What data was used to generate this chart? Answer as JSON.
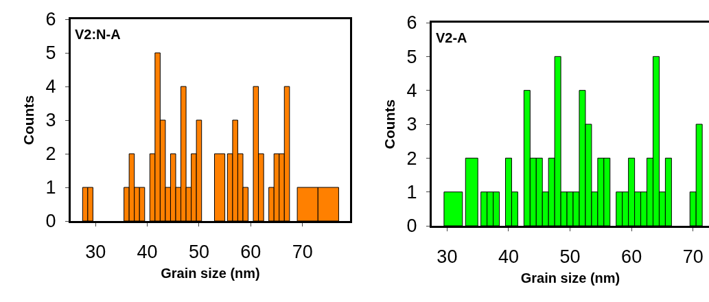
{
  "chart_data": [
    {
      "type": "histogram",
      "title": "V2:N-A",
      "xlabel": "Grain size (nm)",
      "ylabel": "Counts",
      "color": "#ff8000",
      "bins": [
        27.5,
        28.5,
        29.5,
        35.5,
        36.5,
        37.5,
        38.5,
        39.5,
        40.5,
        41.5,
        42.5,
        43.5,
        44.5,
        45.5,
        46.5,
        47.5,
        48.5,
        49.5,
        50.5,
        53,
        55,
        55.5,
        56.5,
        57.5,
        58.5,
        59.5,
        60.5,
        61.5,
        62.5,
        63.5,
        64.5,
        65.5,
        66.5,
        67.5,
        69,
        73,
        77
      ],
      "values": [
        1,
        1,
        0,
        1,
        2,
        1,
        1,
        0,
        2,
        5,
        3,
        1,
        2,
        1,
        4,
        1,
        2,
        3,
        0,
        2,
        0,
        2,
        3,
        2,
        1,
        0,
        4,
        2,
        0,
        1,
        2,
        2,
        4,
        0,
        1,
        1
      ],
      "xlim": [
        25.2,
        79.2
      ],
      "xticks": [
        30,
        40,
        50,
        60,
        70
      ],
      "ylim": [
        0,
        6
      ],
      "yticks": [
        0,
        1,
        2,
        3,
        4,
        5,
        6
      ],
      "grid": false,
      "legend": false
    },
    {
      "type": "histogram",
      "title": "V2-A",
      "xlabel": "Grain size (nm)",
      "ylabel": "Counts",
      "color": "#00ff00",
      "bins": [
        29.5,
        32.5,
        33,
        35,
        35.5,
        36.5,
        37.5,
        38.5,
        39.5,
        40.5,
        41.5,
        42.5,
        43.5,
        44.5,
        45.5,
        46.5,
        47.5,
        48.5,
        49.5,
        50.5,
        51.5,
        52.5,
        53.5,
        54.5,
        55.5,
        56.5,
        57.5,
        58.5,
        59.5,
        60.5,
        61.5,
        62.5,
        63.5,
        64.5,
        65.5,
        66.5,
        69.5,
        70.5,
        71.5
      ],
      "values": [
        1,
        0,
        2,
        0,
        1,
        1,
        1,
        0,
        2,
        1,
        0,
        4,
        2,
        2,
        1,
        2,
        5,
        1,
        1,
        1,
        4,
        3,
        1,
        2,
        2,
        0,
        1,
        1,
        2,
        1,
        1,
        2,
        5,
        1,
        2,
        0,
        1,
        3
      ],
      "xlim": [
        27.5,
        72.6
      ],
      "xticks": [
        30,
        40,
        50,
        60,
        70
      ],
      "ylim": [
        0,
        6
      ],
      "yticks": [
        0,
        1,
        2,
        3,
        4,
        5,
        6
      ],
      "grid": false,
      "legend": false
    }
  ]
}
